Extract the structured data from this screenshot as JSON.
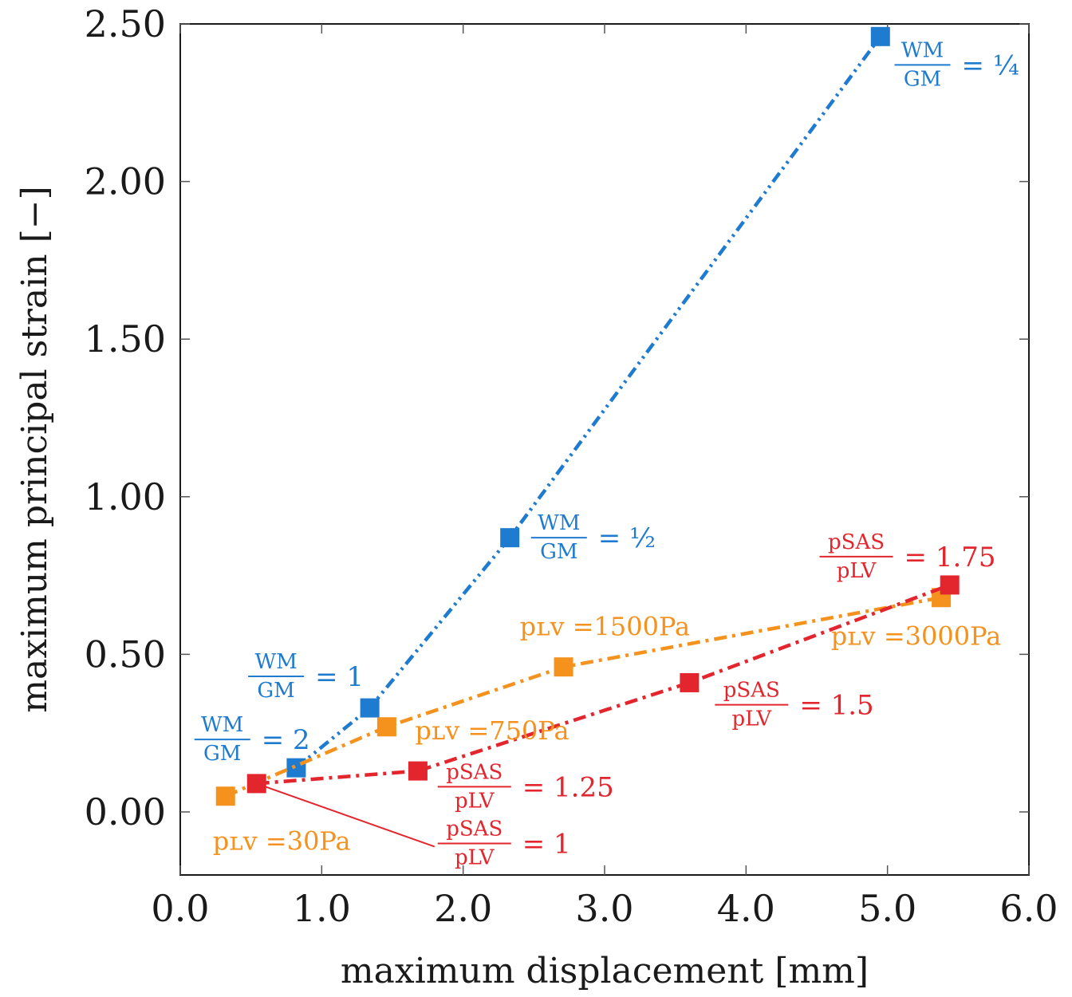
{
  "chart_data": {
    "type": "line",
    "xlabel": "maximum displacement [mm]",
    "ylabel": "maximum principal strain [−]",
    "xlim": [
      0.0,
      6.0
    ],
    "ylim": [
      -0.2,
      2.5
    ],
    "xticks": [
      "0.0",
      "1.0",
      "2.0",
      "3.0",
      "4.0",
      "5.0",
      "6.0"
    ],
    "xtick_values": [
      0,
      1,
      2,
      3,
      4,
      5,
      6
    ],
    "yticks": [
      "0.00",
      "0.50",
      "1.00",
      "1.50",
      "2.00",
      "2.50"
    ],
    "ytick_values": [
      0,
      0.5,
      1.0,
      1.5,
      2.0,
      2.5
    ],
    "grid": false,
    "series": [
      {
        "color": "#1f7bcf",
        "line_style": "dash-dot-dot",
        "marker": "square",
        "x": [
          0.82,
          1.34,
          2.33,
          4.95
        ],
        "y": [
          0.14,
          0.33,
          0.87,
          2.46
        ]
      },
      {
        "color": "#f5921e",
        "line_style": "dash-dot",
        "marker": "square",
        "x": [
          0.32,
          1.46,
          2.71,
          5.38
        ],
        "y": [
          0.05,
          0.27,
          0.46,
          0.68
        ]
      },
      {
        "color": "#e3262e",
        "line_style": "dash-dot",
        "marker": "square",
        "x": [
          0.54,
          1.68,
          3.6,
          5.44
        ],
        "y": [
          0.09,
          0.13,
          0.41,
          0.72
        ]
      }
    ],
    "annotations": [
      {
        "kind": "fraction",
        "num": "WM",
        "den": "GM",
        "rhs": "= 2",
        "color": "#1f7bcf",
        "label_x": 0.1,
        "label_y": 0.23,
        "anchor_x": 0.82,
        "anchor_y": 0.14
      },
      {
        "kind": "fraction",
        "num": "WM",
        "den": "GM",
        "rhs": "= 1",
        "color": "#1f7bcf",
        "label_x": 0.48,
        "label_y": 0.43,
        "anchor_x": 1.34,
        "anchor_y": 0.33
      },
      {
        "kind": "fraction",
        "num": "WM",
        "den": "GM",
        "rhs": "= ½",
        "color": "#1f7bcf",
        "label_x": 2.48,
        "label_y": 0.87,
        "anchor_x": 2.33,
        "anchor_y": 0.87
      },
      {
        "kind": "fraction",
        "num": "WM",
        "den": "GM",
        "rhs": "= ¼",
        "color": "#1f7bcf",
        "label_x": 5.05,
        "label_y": 2.37,
        "anchor_x": 4.95,
        "anchor_y": 2.46
      },
      {
        "kind": "inline",
        "text": "pʟᴠ =30Pa",
        "color": "#f5921e",
        "label_x": 0.23,
        "label_y": -0.12,
        "anchor_x": 0.32,
        "anchor_y": 0.05
      },
      {
        "kind": "inline",
        "text": "pʟᴠ =750Pa",
        "color": "#f5921e",
        "label_x": 1.66,
        "label_y": 0.23,
        "anchor_x": 1.46,
        "anchor_y": 0.27
      },
      {
        "kind": "inline",
        "text": "pʟᴠ =1500Pa",
        "color": "#f5921e",
        "label_x": 2.4,
        "label_y": 0.56,
        "anchor_x": 2.71,
        "anchor_y": 0.46
      },
      {
        "kind": "inline",
        "text": "pʟᴠ =3000Pa",
        "color": "#f5921e",
        "label_x": 4.6,
        "label_y": 0.53,
        "anchor_x": 5.38,
        "anchor_y": 0.68
      },
      {
        "kind": "fraction",
        "num": "pSAS",
        "den": "pLV",
        "rhs": "= 1",
        "color": "#e3262e",
        "label_x": 1.82,
        "label_y": -0.1,
        "anchor_x": 0.54,
        "anchor_y": 0.09,
        "leader": true
      },
      {
        "kind": "fraction",
        "num": "pSAS",
        "den": "pLV",
        "rhs": "= 1.25",
        "color": "#e3262e",
        "label_x": 1.82,
        "label_y": 0.08,
        "anchor_x": 1.68,
        "anchor_y": 0.13
      },
      {
        "kind": "fraction",
        "num": "pSAS",
        "den": "pLV",
        "rhs": "= 1.5",
        "color": "#e3262e",
        "label_x": 3.78,
        "label_y": 0.34,
        "anchor_x": 3.6,
        "anchor_y": 0.41
      },
      {
        "kind": "fraction",
        "num": "pSAS",
        "den": "pLV",
        "rhs": "= 1.75",
        "color": "#e3262e",
        "label_x": 4.52,
        "label_y": 0.81,
        "anchor_x": 5.44,
        "anchor_y": 0.72
      }
    ]
  }
}
